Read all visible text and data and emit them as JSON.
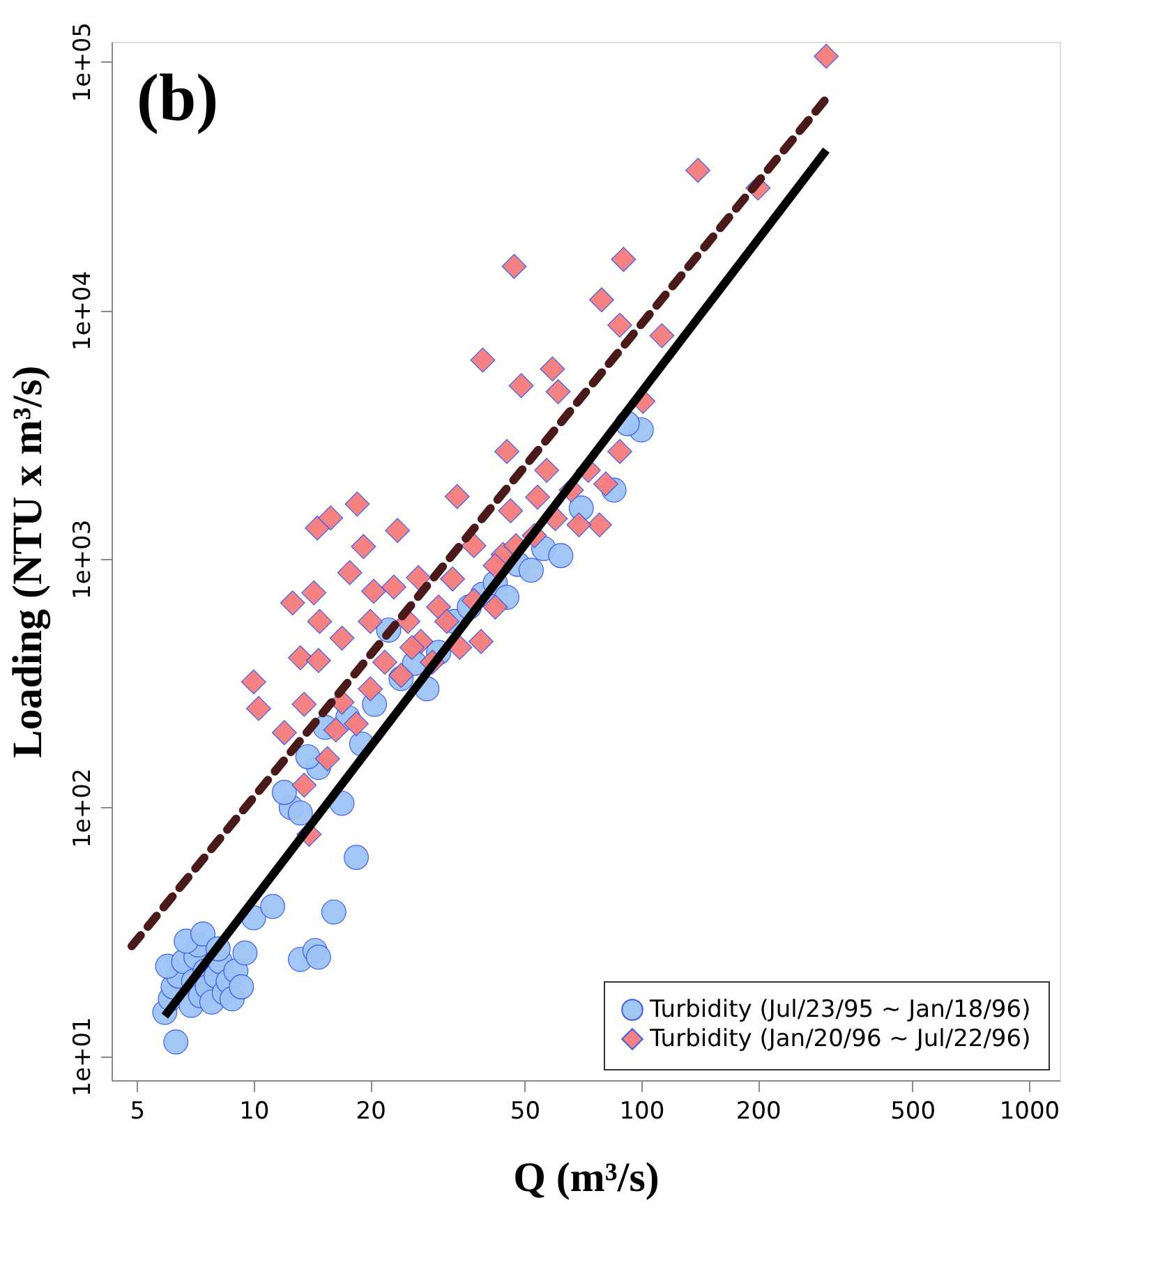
{
  "chart_data": {
    "type": "scatter",
    "xlabel": "Q (m³/s)",
    "ylabel": "Loading (NTU x m³/s)",
    "annotations": [
      "(b)"
    ],
    "log": "xy",
    "xlim": [
      4.3,
      1200
    ],
    "ylim": [
      8,
      120000
    ],
    "xticks": [
      5,
      10,
      20,
      50,
      100,
      200,
      500,
      1000
    ],
    "yticks": [
      {
        "value": 10,
        "label": "1e+01"
      },
      {
        "value": 100,
        "label": "1e+02"
      },
      {
        "value": 1000,
        "label": "1e+03"
      },
      {
        "value": 10000,
        "label": "1e+04"
      },
      {
        "value": 100000,
        "label": "1e+05"
      }
    ],
    "grid": false,
    "legend": "bottom right",
    "series": [
      {
        "name": "Turbidity (Jul/23/95 ~ Jan/18/96)",
        "color": "#9ec4f5",
        "marker": "circle",
        "x": [
          6.3,
          5.9,
          6.1,
          6.2,
          6.4,
          6.0,
          6.6,
          6.9,
          7.0,
          7.1,
          7.2,
          7.3,
          7.5,
          7.6,
          7.8,
          8.0,
          8.2,
          8.4,
          8.6,
          8.8,
          9.0,
          9.3,
          9.5,
          6.7,
          7.4,
          8.1,
          10,
          11.2,
          12.5,
          13.2,
          13.2,
          14.4,
          14.7,
          14.7,
          16.1,
          16.9,
          18.4,
          12.0,
          13.8,
          15.3,
          17.5,
          19,
          20.5,
          22.3,
          24,
          26,
          28,
          30,
          33,
          36,
          39,
          42,
          45,
          48,
          52,
          56,
          62,
          70,
          85,
          100,
          92
        ],
        "values": [
          11.4,
          15,
          17,
          19,
          21,
          23,
          24,
          16,
          20,
          25,
          28,
          17.5,
          22,
          19,
          16.5,
          21,
          24,
          18,
          20,
          17,
          22,
          19,
          26,
          29,
          31,
          27,
          36,
          40,
          100,
          95,
          24.5,
          26.6,
          25,
          145,
          38,
          104,
          63,
          115,
          160,
          210,
          230,
          180,
          260,
          517,
          330,
          380,
          300,
          420,
          560,
          640,
          720,
          800,
          700,
          950,
          900,
          1100,
          1030,
          1600,
          1890,
          3300,
          3500
        ]
      },
      {
        "name": "Turbidity (Jan/20/96 ~ Jul/22/96)",
        "color": "#f47c7c",
        "marker": "diamond",
        "x": [
          300,
          140,
          200,
          47,
          90,
          79,
          88,
          113,
          39,
          59,
          49,
          61,
          10,
          10.3,
          12.6,
          13.2,
          13.5,
          14.6,
          15.8,
          14.3,
          14.8,
          14.7,
          16.9,
          17.7,
          18.5,
          19.2,
          20.4,
          20,
          23,
          23.5,
          25,
          26.6,
          27,
          30,
          32.6,
          33.5,
          37,
          38.6,
          42,
          44,
          46,
          45,
          54,
          57,
          66,
          73,
          78,
          12,
          13.5,
          13.9,
          15.5,
          16.3,
          16.9,
          18.4,
          20,
          21.8,
          24,
          25.6,
          28.9,
          31.5,
          34,
          37,
          42,
          47.5,
          53,
          60,
          69,
          81,
          88,
          101
        ],
        "values": [
          105000,
          36500,
          31000,
          15000,
          16000,
          11000,
          8700,
          7900,
          6300,
          5800,
          4970,
          4700,
          320,
          250,
          665,
          400,
          260,
          1330,
          1460,
          730,
          560,
          390,
          480,
          880,
          1660,
          1120,
          740,
          560,
          770,
          1300,
          560,
          840,
          465,
          640,
          830,
          1780,
          1130,
          465,
          640,
          1040,
          1560,
          2700,
          1770,
          2270,
          1890,
          2270,
          1370,
          200,
          123,
          78,
          157,
          205,
          265,
          217,
          300,
          384,
          340,
          440,
          384,
          560,
          440,
          680,
          940,
          1130,
          1240,
          1450,
          1370,
          2000,
          2700,
          4300
        ]
      },
      {
        "type": "line",
        "color": "#000000",
        "line_style": "solid",
        "x": [
          5.9,
          300
        ],
        "values": [
          14.5,
          44000
        ]
      },
      {
        "type": "line",
        "color": "#4a1a1a",
        "line_style": "dashed",
        "x": [
          4.85,
          300
        ],
        "values": [
          27.7,
          71000
        ]
      }
    ]
  }
}
